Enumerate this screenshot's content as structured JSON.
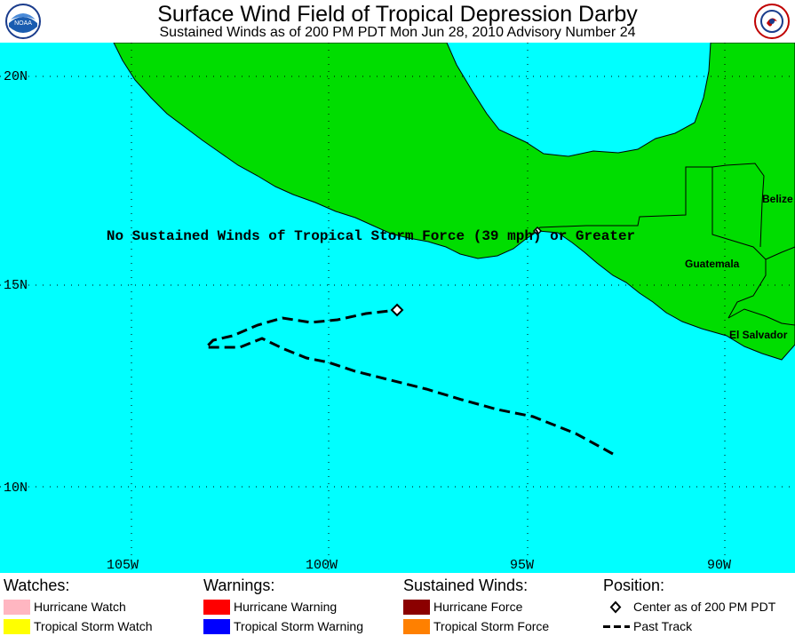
{
  "header": {
    "title": "Surface Wind Field of Tropical Depression Darby",
    "subtitle": "Sustained Winds as of 200 PM PDT Mon Jun 28, 2010   Advisory Number 24",
    "logo_left_text": "NOAA",
    "logo_right_text": "NATIONAL WEATHER SERVICE"
  },
  "map": {
    "ocean_color": "#00ffff",
    "land_color": "#00dd00",
    "latitude_labels": [
      "20N",
      "15N",
      "10N"
    ],
    "longitude_labels": [
      "105W",
      "100W",
      "95W",
      "90W"
    ],
    "message": "No Sustained Winds of Tropical Storm Force (39 mph) or Greater",
    "countries": [
      "Belize",
      "Guatemala",
      "El Salvador"
    ],
    "track_color": "#000000",
    "center_marker": "diamond-icon"
  },
  "legend": {
    "watches": {
      "heading": "Watches:",
      "items": [
        {
          "label": "Hurricane Watch",
          "color": "#ffb6c1"
        },
        {
          "label": "Tropical Storm Watch",
          "color": "#ffff00"
        }
      ]
    },
    "warnings": {
      "heading": "Warnings:",
      "items": [
        {
          "label": "Hurricane Warning",
          "color": "#ff0000"
        },
        {
          "label": "Tropical Storm Warning",
          "color": "#0000ff"
        }
      ]
    },
    "winds": {
      "heading": "Sustained Winds:",
      "items": [
        {
          "label": "Hurricane Force",
          "color": "#8b0000"
        },
        {
          "label": "Tropical Storm Force",
          "color": "#ff8000"
        }
      ]
    },
    "position": {
      "heading": "Position:",
      "items": [
        {
          "label": "Center as of 200 PM PDT",
          "icon": "diamond-icon"
        },
        {
          "label": "Past Track",
          "icon": "dashed-line-icon"
        }
      ]
    }
  }
}
